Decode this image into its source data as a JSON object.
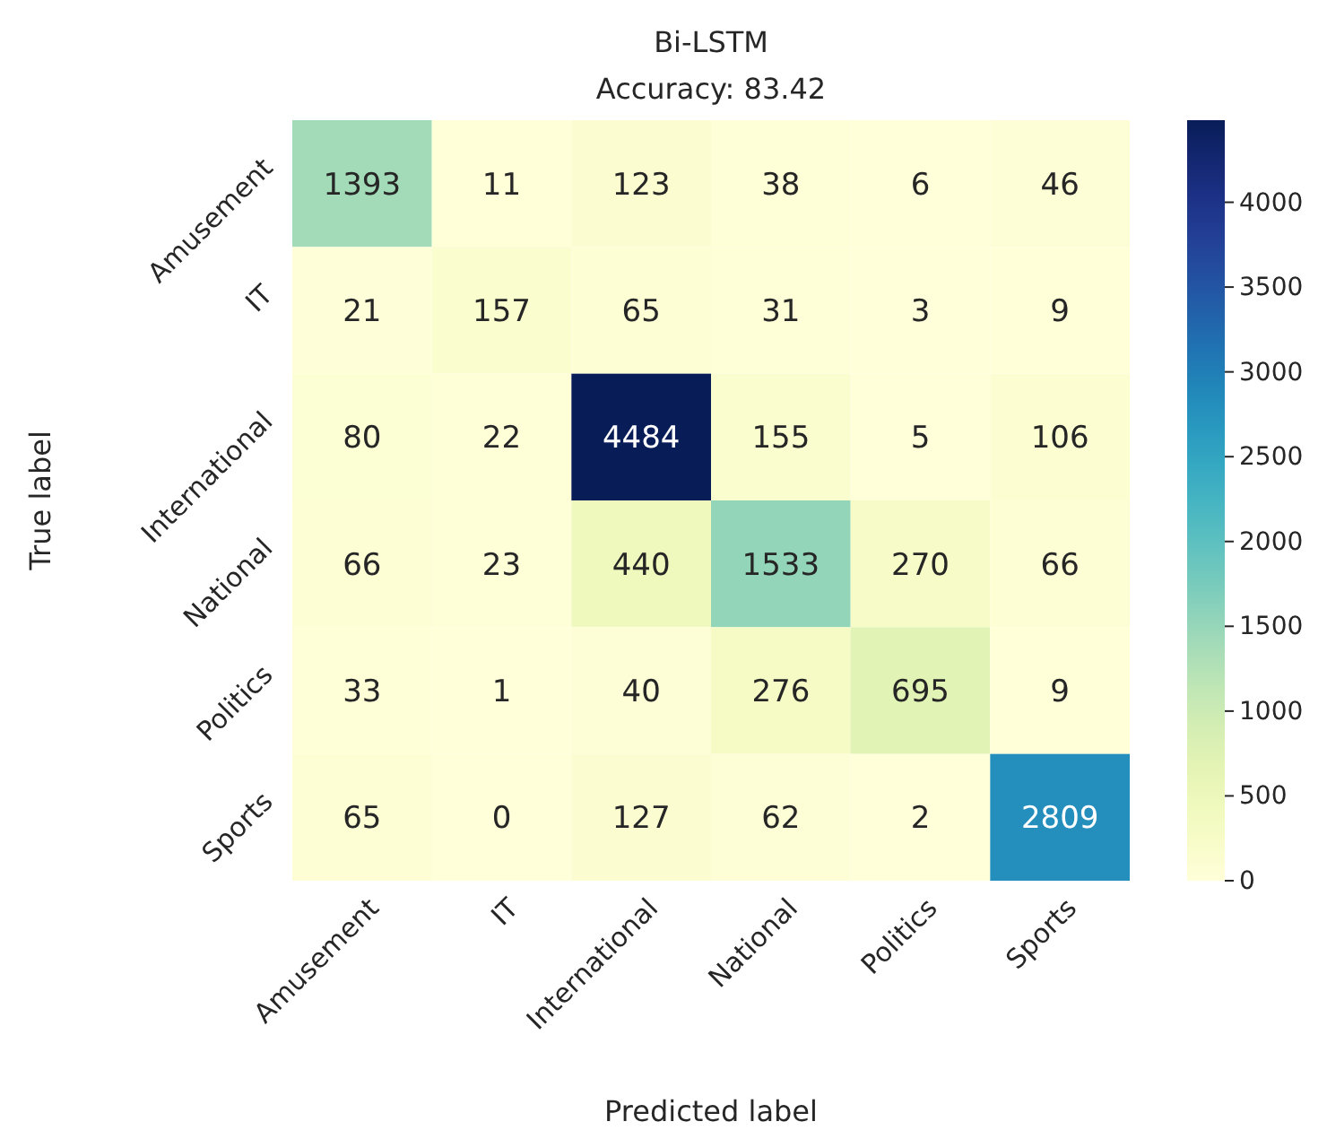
{
  "chart_data": {
    "type": "heatmap",
    "title": "Bi-LSTM",
    "subtitle": "Accuracy: 83.42",
    "xlabel": "Predicted label",
    "ylabel": "True label",
    "categories": [
      "Amusement",
      "IT",
      "International",
      "National",
      "Politics",
      "Sports"
    ],
    "y_categories": [
      "Amusement",
      "IT",
      "International",
      "National",
      "Politics",
      "Sports"
    ],
    "cells": [
      [
        1393,
        11,
        123,
        38,
        6,
        46
      ],
      [
        21,
        157,
        65,
        31,
        3,
        9
      ],
      [
        80,
        22,
        4484,
        155,
        5,
        106
      ],
      [
        66,
        23,
        440,
        1533,
        270,
        66
      ],
      [
        33,
        1,
        40,
        276,
        695,
        9
      ],
      [
        65,
        0,
        127,
        62,
        2,
        2809
      ]
    ],
    "data_labels": true,
    "clim": [
      0,
      4484
    ],
    "cticks": [
      0,
      500,
      1000,
      1500,
      2000,
      2500,
      3000,
      3500,
      4000
    ]
  }
}
